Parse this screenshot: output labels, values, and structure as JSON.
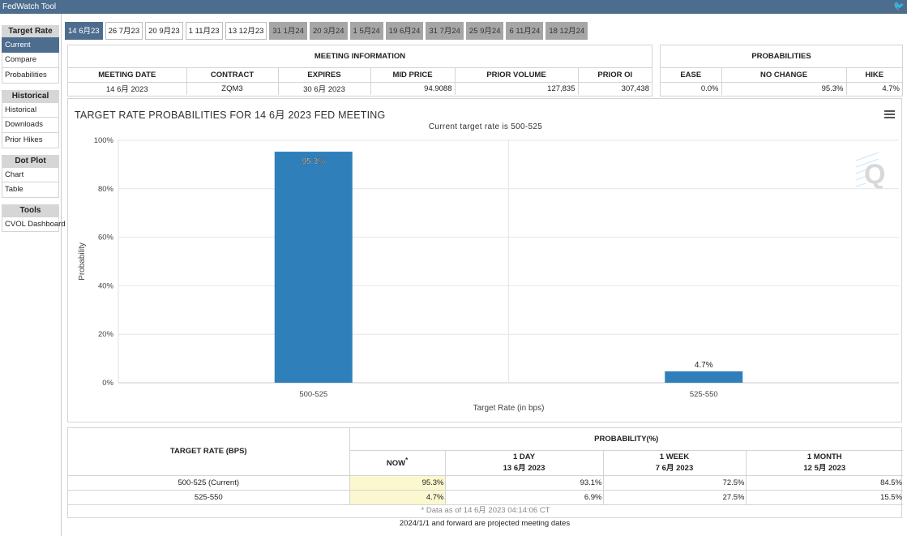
{
  "app": {
    "title": "FedWatch Tool"
  },
  "sidebar": {
    "sections": [
      {
        "heading": "Target Rate",
        "items": [
          "Current",
          "Compare",
          "Probabilities"
        ]
      },
      {
        "heading": "Historical",
        "items": [
          "Historical",
          "Downloads",
          "Prior Hikes"
        ]
      },
      {
        "heading": "Dot Plot",
        "items": [
          "Chart",
          "Table"
        ]
      },
      {
        "heading": "Tools",
        "items": [
          "CVOL Dashboard"
        ]
      }
    ]
  },
  "tabs": [
    "14 6月23",
    "26 7月23",
    "20 9月23",
    "1 11月23",
    "13 12月23",
    "31 1月24",
    "20 3月24",
    "1 5月24",
    "19 6月24",
    "31 7月24",
    "25 9月24",
    "6 11月24",
    "18 12月24"
  ],
  "meeting_info": {
    "heading": "MEETING INFORMATION",
    "columns": [
      "MEETING DATE",
      "CONTRACT",
      "EXPIRES",
      "MID PRICE",
      "PRIOR VOLUME",
      "PRIOR OI"
    ],
    "values": [
      "14 6月 2023",
      "ZQM3",
      "30 6月 2023",
      "94.9088",
      "127,835",
      "307,438"
    ]
  },
  "probabilities": {
    "heading": "PROBABILITIES",
    "columns": [
      "EASE",
      "NO CHANGE",
      "HIKE"
    ],
    "values": [
      "0.0%",
      "95.3%",
      "4.7%"
    ]
  },
  "chart": {
    "title": "TARGET RATE PROBABILITIES FOR 14 6月 2023 FED MEETING",
    "subtitle": "Current target rate is 500-525",
    "watermark": "Q"
  },
  "chart_data": {
    "type": "bar",
    "categories": [
      "500-525",
      "525-550"
    ],
    "values": [
      95.3,
      4.7
    ],
    "data_labels": [
      "95.3%",
      "4.7%"
    ],
    "xlabel": "Target Rate (in bps)",
    "ylabel": "Probability",
    "ylim": [
      0,
      100
    ],
    "yticks": [
      "0%",
      "20%",
      "40%",
      "60%",
      "80%",
      "100%"
    ],
    "grid": true,
    "bar_color": "#2f80ba"
  },
  "bottom_table": {
    "target_header": "TARGET RATE (BPS)",
    "prob_header": "PROBABILITY(%)",
    "col_now": "NOW",
    "col_now_mark": "*",
    "periods": [
      {
        "label": "1 DAY",
        "date": "13 6月 2023"
      },
      {
        "label": "1 WEEK",
        "date": "7 6月 2023"
      },
      {
        "label": "1 MONTH",
        "date": "12 5月 2023"
      }
    ],
    "rows": [
      {
        "rate": "500-525 (Current)",
        "now": "95.3%",
        "day": "93.1%",
        "week": "72.5%",
        "month": "84.5%"
      },
      {
        "rate": "525-550",
        "now": "4.7%",
        "day": "6.9%",
        "week": "27.5%",
        "month": "15.5%"
      }
    ],
    "footnote": "* Data as of 14 6月 2023 04:14:06 CT"
  },
  "projected_note": "2024/1/1 and forward are projected meeting dates",
  "colors": {
    "accent": "#4d6d8f",
    "tab_grey": "#a6a6a6",
    "now_highlight": "#fbf8cf"
  }
}
